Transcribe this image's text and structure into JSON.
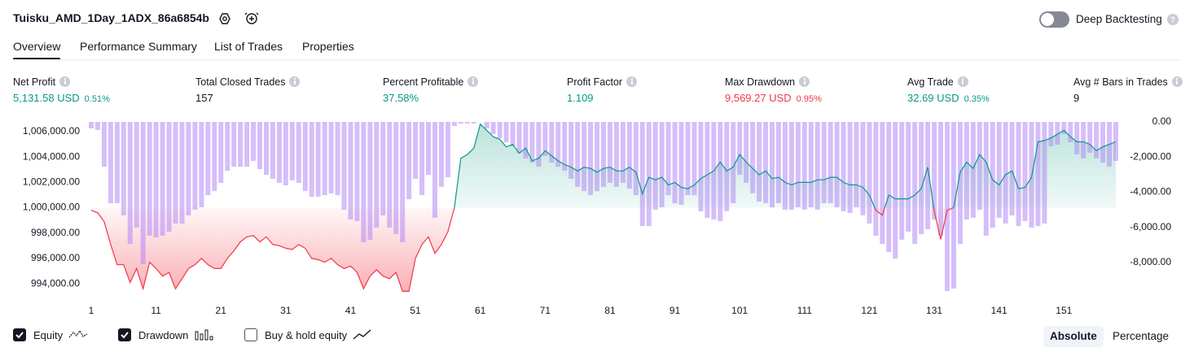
{
  "header": {
    "title": "Tuisku_AMD_1Day_1ADX_86a6854b",
    "toggle_label": "Deep Backtesting"
  },
  "tabs": [
    "Overview",
    "Performance Summary",
    "List of Trades",
    "Properties"
  ],
  "active_tab": 0,
  "metrics": [
    {
      "label": "Net Profit",
      "value": "5,131.58 USD",
      "percent": "0.51%",
      "color": "#089981"
    },
    {
      "label": "Total Closed Trades",
      "value": "157",
      "color": "#131722"
    },
    {
      "label": "Percent Profitable",
      "value": "37.58%",
      "color": "#089981"
    },
    {
      "label": "Profit Factor",
      "value": "1.109",
      "color": "#089981"
    },
    {
      "label": "Max Drawdown",
      "value": "9,569.27 USD",
      "percent": "0.95%",
      "color": "#f23645"
    },
    {
      "label": "Avg Trade",
      "value": "32.69 USD",
      "percent": "0.35%",
      "color": "#089981"
    },
    {
      "label": "Avg # Bars in Trades",
      "value": "9",
      "color": "#131722"
    }
  ],
  "chart_data": {
    "type": "line",
    "baseline": 1000000,
    "xlim": [
      1,
      159
    ],
    "xticks": [
      1,
      11,
      21,
      31,
      41,
      51,
      61,
      71,
      81,
      91,
      101,
      111,
      121,
      131,
      141,
      151
    ],
    "ylim": [
      993300,
      1006770
    ],
    "yticks": [
      {
        "value": 994000,
        "label": "994,000.00"
      },
      {
        "value": 996000,
        "label": "996,000.00"
      },
      {
        "value": 998000,
        "label": "998,000.00"
      },
      {
        "value": 1000000,
        "label": "1,000,000.00"
      },
      {
        "value": 1002000,
        "label": "1,002,000.00"
      },
      {
        "value": 1004000,
        "label": "1,004,000.00"
      },
      {
        "value": 1006000,
        "label": "1,006,000.00"
      }
    ],
    "y2lim": [
      -9720,
      0
    ],
    "y2ticks": [
      {
        "value": -8000,
        "label": "-8,000.00"
      },
      {
        "value": -6000,
        "label": "-6,000.00"
      },
      {
        "value": -4000,
        "label": "-4,000.00"
      },
      {
        "value": -2000,
        "label": "-2,000.00"
      },
      {
        "value": 0,
        "label": "0.00"
      }
    ],
    "series": [
      {
        "name": "Equity",
        "kind": "line",
        "color_up": "#089981",
        "color_down": "#f23645",
        "values": [
          999800,
          999600,
          998900,
          997100,
          995500,
          995500,
          994100,
          995200,
          993600,
          995700,
          995200,
          994600,
          994900,
          993600,
          994400,
          995200,
          995500,
          996000,
          995500,
          995200,
          995200,
          996000,
          996600,
          997300,
          997700,
          997800,
          997300,
          997700,
          997100,
          997000,
          996800,
          996700,
          997100,
          996800,
          996000,
          995900,
          995700,
          996000,
          995500,
          995200,
          995400,
          994900,
          993600,
          994600,
          995100,
          994600,
          994400,
          994900,
          993400,
          993400,
          996000,
          997100,
          997700,
          996400,
          997100,
          998100,
          1000000,
          1003900,
          1004200,
          1004700,
          1006600,
          1006100,
          1005600,
          1005400,
          1004800,
          1005000,
          1004300,
          1004700,
          1003700,
          1003900,
          1004500,
          1004100,
          1003700,
          1003400,
          1003200,
          1002900,
          1003200,
          1003100,
          1002800,
          1003100,
          1003200,
          1002900,
          1002900,
          1003200,
          1002800,
          1001100,
          1002400,
          1002200,
          1002400,
          1001800,
          1002000,
          1001600,
          1001500,
          1001800,
          1002300,
          1002600,
          1002900,
          1003600,
          1002900,
          1003200,
          1004200,
          1003600,
          1003100,
          1002600,
          1002900,
          1002300,
          1002400,
          1002000,
          1001800,
          1002000,
          1002000,
          1002000,
          1002200,
          1002200,
          1002400,
          1002400,
          1002000,
          1001800,
          1001800,
          1001600,
          1001000,
          999800,
          999400,
          1001000,
          1000700,
          1000700,
          1000700,
          1001000,
          1001500,
          1003200,
          999700,
          997500,
          999800,
          1000000,
          1002800,
          1003600,
          1003100,
          1004200,
          1003600,
          1002200,
          1001800,
          1002600,
          1002900,
          1001500,
          1001600,
          1002400,
          1005200,
          1005300,
          1005500,
          1005800,
          1006100,
          1005600,
          1005200,
          1005200,
          1005000,
          1004500,
          1004800,
          1005000,
          1005200
        ]
      },
      {
        "name": "Drawdown",
        "kind": "bar",
        "axis": "y2",
        "color": "#b388f5",
        "values": [
          -370,
          -460,
          -2550,
          -4630,
          -4630,
          -5320,
          -6950,
          -6020,
          -8100,
          -6480,
          -6570,
          -6480,
          -6250,
          -5790,
          -5790,
          -5320,
          -5000,
          -4860,
          -4170,
          -3940,
          -3470,
          -2780,
          -2550,
          -2550,
          -2550,
          -2220,
          -2690,
          -3010,
          -3240,
          -3470,
          -3610,
          -3330,
          -3470,
          -3940,
          -4260,
          -4260,
          -4170,
          -4070,
          -4170,
          -5000,
          -5560,
          -5650,
          -6850,
          -6710,
          -6020,
          -5320,
          -6020,
          -6390,
          -6850,
          -4400,
          -3240,
          -4170,
          -3010,
          -5460,
          -3700,
          -3150,
          -230,
          -90,
          -90,
          -90,
          0,
          -370,
          -690,
          -930,
          -1160,
          -1390,
          -1760,
          -2080,
          -2320,
          -2550,
          -1940,
          -2320,
          -2550,
          -2780,
          -3240,
          -3700,
          -3940,
          -4170,
          -3940,
          -3700,
          -3470,
          -3700,
          -3470,
          -3800,
          -4170,
          -5930,
          -5930,
          -5000,
          -4860,
          -4170,
          -4630,
          -4720,
          -4170,
          -4170,
          -5090,
          -5460,
          -5560,
          -5650,
          -5090,
          -4630,
          -3010,
          -3470,
          -4070,
          -4540,
          -4630,
          -4860,
          -4630,
          -5000,
          -5000,
          -4860,
          -5000,
          -4860,
          -5000,
          -4630,
          -4630,
          -4860,
          -5090,
          -5190,
          -4860,
          -5320,
          -5790,
          -6480,
          -6950,
          -7410,
          -7780,
          -6710,
          -6250,
          -6950,
          -6390,
          -6110,
          -5560,
          -6480,
          -9630,
          -9490,
          -6950,
          -5560,
          -5460,
          -5000,
          -6480,
          -6020,
          -5460,
          -5790,
          -5320,
          -5930,
          -5650,
          -6020,
          -5930,
          -5790,
          -1390,
          -1300,
          -690,
          -1160,
          -1850,
          -2080,
          -1760,
          -2080,
          -2320,
          -2550,
          -2220
        ]
      }
    ]
  },
  "legend_options": [
    {
      "label": "Equity",
      "checked": true
    },
    {
      "label": "Drawdown",
      "checked": true
    },
    {
      "label": "Buy & hold equity",
      "checked": false
    }
  ],
  "buttons": [
    "Absolute",
    "Percentage"
  ],
  "active_button": 0
}
